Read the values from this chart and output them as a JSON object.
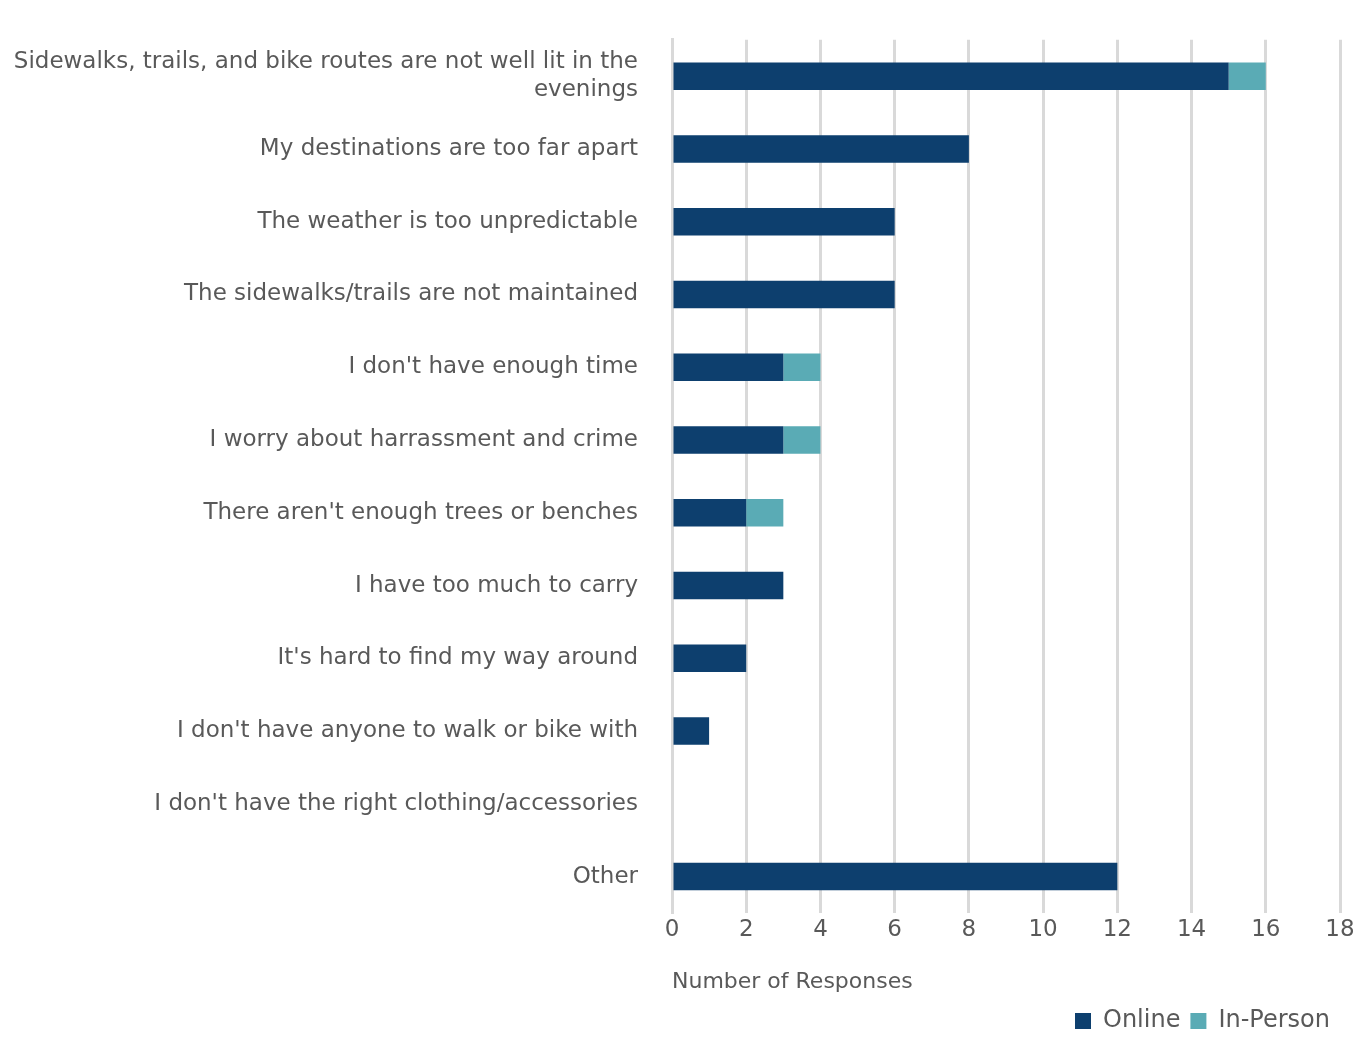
{
  "chart_data": {
    "type": "bar",
    "orientation": "horizontal",
    "stacked": true,
    "categories": [
      "Sidewalks, trails, and bike routes are not well lit in the evenings",
      "My destinations are too far apart",
      "The weather is too unpredictable",
      "The sidewalks/trails are not maintained",
      "I don't have enough time",
      "I worry about harrassment and crime",
      "There aren't enough trees or benches",
      "I have too much to carry",
      "It's hard to find my way around",
      "I don't have anyone to walk or bike with",
      "I don't have the right clothing/accessories",
      "Other"
    ],
    "series": [
      {
        "name": "Online",
        "color": "#0d3f6e",
        "values": [
          15,
          8,
          6,
          6,
          3,
          3,
          2,
          3,
          2,
          1,
          0,
          12
        ]
      },
      {
        "name": "In-Person",
        "color": "#5aabb5",
        "values": [
          1,
          0,
          0,
          0,
          1,
          1,
          1,
          0,
          0,
          0,
          0,
          0
        ]
      }
    ],
    "xlim": [
      0,
      18
    ],
    "xticks": [
      0,
      2,
      4,
      6,
      8,
      10,
      12,
      14,
      16,
      18
    ],
    "xlabel": "Number of Responses",
    "grid": "x",
    "legend": "bottom right"
  }
}
